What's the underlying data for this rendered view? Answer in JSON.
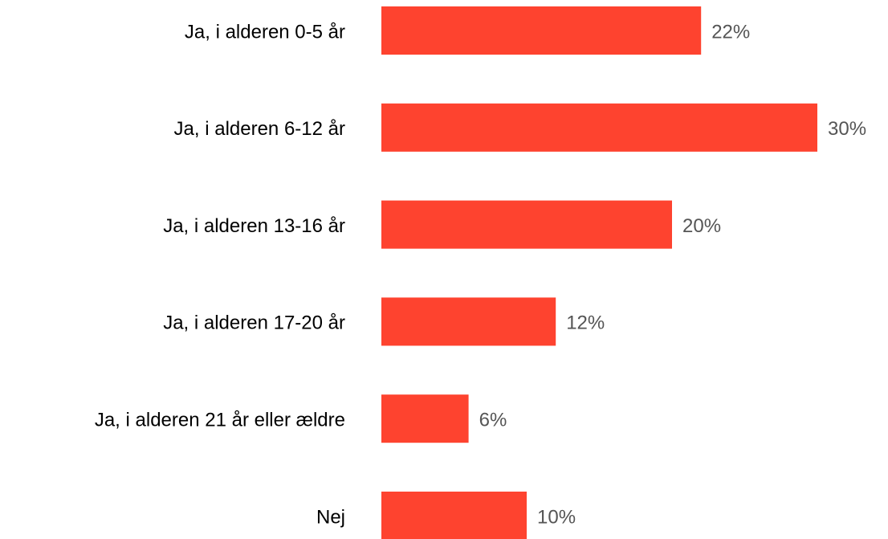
{
  "chart_data": {
    "type": "bar",
    "orientation": "horizontal",
    "categories": [
      "Ja, i alderen 0-5 år",
      "Ja, i alderen 6-12 år",
      "Ja, i alderen 13-16 år",
      "Ja, i alderen 17-20 år",
      "Ja, i alderen 21 år eller ældre",
      "Nej"
    ],
    "values": [
      22,
      30,
      20,
      12,
      6,
      10
    ],
    "value_labels": [
      "22%",
      "30%",
      "20%",
      "12%",
      "6%",
      "10%"
    ],
    "color": "#fe432f",
    "xlim": [
      0,
      30
    ]
  }
}
